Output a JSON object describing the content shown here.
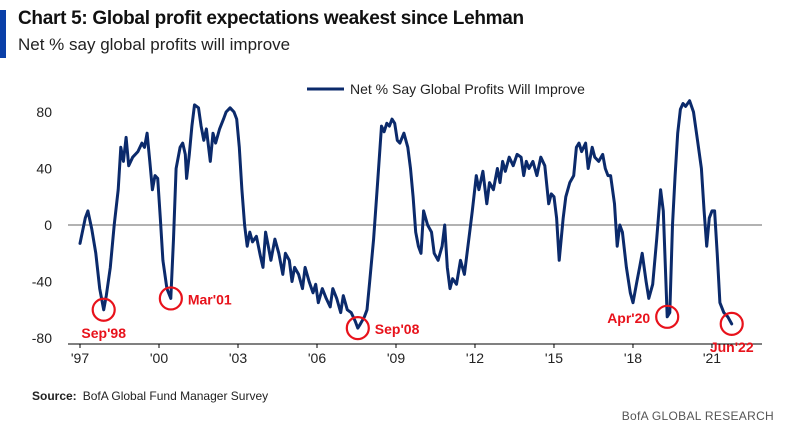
{
  "header": {
    "title": "Chart 5: Global profit expectations weakest since Lehman",
    "subtitle": "Net % say global profits will improve"
  },
  "footer": {
    "source_label": "Source:",
    "source_text": "BofA Global Fund Manager Survey",
    "brand": "BofA GLOBAL RESEARCH"
  },
  "colors": {
    "line": "#0b2a6b",
    "annotation": "#e8121b",
    "accent": "#0a3fa8",
    "axis": "#000000"
  },
  "chart_data": {
    "type": "line",
    "title": "Chart 5: Global profit expectations weakest since Lehman",
    "subtitle": "Net % say global profits will improve",
    "ylim": [
      -80,
      80
    ],
    "yticks": [
      -80,
      -40,
      0,
      40,
      80
    ],
    "xlim": [
      1997.0,
      2022.9
    ],
    "xticks": [
      {
        "x": 1997,
        "label": "'97"
      },
      {
        "x": 2000,
        "label": "'00"
      },
      {
        "x": 2003,
        "label": "'03"
      },
      {
        "x": 2006,
        "label": "'06"
      },
      {
        "x": 2009,
        "label": "'09"
      },
      {
        "x": 2012,
        "label": "'12"
      },
      {
        "x": 2015,
        "label": "'15"
      },
      {
        "x": 2018,
        "label": "'18"
      },
      {
        "x": 2021,
        "label": "'21"
      }
    ],
    "grid": false,
    "legend": "top-center",
    "series": [
      {
        "name": "Net % Say Global Profits Will Improve",
        "points": [
          [
            1997.0,
            -13
          ],
          [
            1997.2,
            5
          ],
          [
            1997.3,
            10
          ],
          [
            1997.45,
            -3
          ],
          [
            1997.6,
            -20
          ],
          [
            1997.75,
            -45
          ],
          [
            1997.9,
            -60
          ],
          [
            1998.0,
            -50
          ],
          [
            1998.15,
            -30
          ],
          [
            1998.3,
            0
          ],
          [
            1998.45,
            25
          ],
          [
            1998.55,
            55
          ],
          [
            1998.65,
            45
          ],
          [
            1998.75,
            62
          ],
          [
            1998.85,
            42
          ],
          [
            1999.0,
            48
          ],
          [
            1999.2,
            52
          ],
          [
            1999.35,
            58
          ],
          [
            1999.45,
            55
          ],
          [
            1999.55,
            65
          ],
          [
            1999.65,
            45
          ],
          [
            1999.75,
            25
          ],
          [
            1999.85,
            35
          ],
          [
            1999.95,
            33
          ],
          [
            2000.05,
            5
          ],
          [
            2000.15,
            -25
          ],
          [
            2000.3,
            -45
          ],
          [
            2000.45,
            -52
          ],
          [
            2000.55,
            -10
          ],
          [
            2000.65,
            40
          ],
          [
            2000.8,
            55
          ],
          [
            2000.9,
            58
          ],
          [
            2001.0,
            50
          ],
          [
            2001.05,
            33
          ],
          [
            2001.15,
            50
          ],
          [
            2001.25,
            70
          ],
          [
            2001.35,
            85
          ],
          [
            2001.5,
            83
          ],
          [
            2001.6,
            70
          ],
          [
            2001.7,
            60
          ],
          [
            2001.8,
            68
          ],
          [
            2001.95,
            45
          ],
          [
            2002.05,
            65
          ],
          [
            2002.15,
            58
          ],
          [
            2002.3,
            68
          ],
          [
            2002.45,
            75
          ],
          [
            2002.55,
            80
          ],
          [
            2002.7,
            83
          ],
          [
            2002.85,
            80
          ],
          [
            2002.95,
            75
          ],
          [
            2003.05,
            55
          ],
          [
            2003.15,
            25
          ],
          [
            2003.25,
            0
          ],
          [
            2003.35,
            -15
          ],
          [
            2003.45,
            -5
          ],
          [
            2003.55,
            -12
          ],
          [
            2003.7,
            -8
          ],
          [
            2003.85,
            -22
          ],
          [
            2003.95,
            -30
          ],
          [
            2004.05,
            -5
          ],
          [
            2004.15,
            -15
          ],
          [
            2004.25,
            -25
          ],
          [
            2004.4,
            -10
          ],
          [
            2004.55,
            -20
          ],
          [
            2004.7,
            -35
          ],
          [
            2004.8,
            -20
          ],
          [
            2004.95,
            -25
          ],
          [
            2005.05,
            -40
          ],
          [
            2005.15,
            -30
          ],
          [
            2005.3,
            -35
          ],
          [
            2005.45,
            -45
          ],
          [
            2005.55,
            -30
          ],
          [
            2005.7,
            -40
          ],
          [
            2005.85,
            -48
          ],
          [
            2005.95,
            -42
          ],
          [
            2006.05,
            -55
          ],
          [
            2006.2,
            -45
          ],
          [
            2006.35,
            -52
          ],
          [
            2006.5,
            -58
          ],
          [
            2006.6,
            -45
          ],
          [
            2006.75,
            -52
          ],
          [
            2006.9,
            -62
          ],
          [
            2007.0,
            -50
          ],
          [
            2007.15,
            -60
          ],
          [
            2007.3,
            -62
          ],
          [
            2007.45,
            -68
          ],
          [
            2007.55,
            -73
          ],
          [
            2007.65,
            -70
          ],
          [
            2007.8,
            -65
          ],
          [
            2007.9,
            -60
          ],
          [
            2008.0,
            -40
          ],
          [
            2008.15,
            -10
          ],
          [
            2008.3,
            30
          ],
          [
            2008.45,
            70
          ],
          [
            2008.55,
            66
          ],
          [
            2008.65,
            72
          ],
          [
            2008.75,
            70
          ],
          [
            2008.85,
            75
          ],
          [
            2008.95,
            72
          ],
          [
            2009.05,
            60
          ],
          [
            2009.15,
            58
          ],
          [
            2009.3,
            65
          ],
          [
            2009.45,
            55
          ],
          [
            2009.55,
            40
          ],
          [
            2009.65,
            20
          ],
          [
            2009.75,
            -5
          ],
          [
            2009.85,
            -15
          ],
          [
            2009.95,
            -20
          ],
          [
            2010.05,
            10
          ],
          [
            2010.2,
            0
          ],
          [
            2010.35,
            -5
          ],
          [
            2010.45,
            -20
          ],
          [
            2010.6,
            -25
          ],
          [
            2010.75,
            -15
          ],
          [
            2010.85,
            0
          ],
          [
            2010.95,
            -30
          ],
          [
            2011.05,
            -45
          ],
          [
            2011.15,
            -38
          ],
          [
            2011.3,
            -42
          ],
          [
            2011.45,
            -25
          ],
          [
            2011.6,
            -35
          ],
          [
            2011.8,
            -5
          ],
          [
            2011.9,
            10
          ],
          [
            2012.05,
            35
          ],
          [
            2012.15,
            25
          ],
          [
            2012.3,
            38
          ],
          [
            2012.45,
            15
          ],
          [
            2012.55,
            30
          ],
          [
            2012.7,
            25
          ],
          [
            2012.85,
            40
          ],
          [
            2012.95,
            30
          ],
          [
            2013.05,
            45
          ],
          [
            2013.15,
            38
          ],
          [
            2013.3,
            48
          ],
          [
            2013.45,
            42
          ],
          [
            2013.6,
            50
          ],
          [
            2013.75,
            48
          ],
          [
            2013.85,
            35
          ],
          [
            2013.95,
            45
          ],
          [
            2014.05,
            40
          ],
          [
            2014.2,
            45
          ],
          [
            2014.35,
            35
          ],
          [
            2014.5,
            48
          ],
          [
            2014.65,
            42
          ],
          [
            2014.8,
            15
          ],
          [
            2014.9,
            22
          ],
          [
            2015.0,
            20
          ],
          [
            2015.1,
            5
          ],
          [
            2015.2,
            -25
          ],
          [
            2015.35,
            5
          ],
          [
            2015.45,
            20
          ],
          [
            2015.6,
            30
          ],
          [
            2015.75,
            35
          ],
          [
            2015.85,
            55
          ],
          [
            2015.95,
            58
          ],
          [
            2016.05,
            52
          ],
          [
            2016.2,
            58
          ],
          [
            2016.3,
            40
          ],
          [
            2016.45,
            55
          ],
          [
            2016.55,
            48
          ],
          [
            2016.7,
            45
          ],
          [
            2016.85,
            50
          ],
          [
            2016.95,
            40
          ],
          [
            2017.05,
            35
          ],
          [
            2017.15,
            35
          ],
          [
            2017.3,
            15
          ],
          [
            2017.4,
            -15
          ],
          [
            2017.5,
            0
          ],
          [
            2017.6,
            -5
          ],
          [
            2017.75,
            -30
          ],
          [
            2017.9,
            -48
          ],
          [
            2018.0,
            -55
          ],
          [
            2018.15,
            -40
          ],
          [
            2018.25,
            -30
          ],
          [
            2018.35,
            -20
          ],
          [
            2018.5,
            -40
          ],
          [
            2018.6,
            -52
          ],
          [
            2018.75,
            -42
          ],
          [
            2018.9,
            -10
          ],
          [
            2019.05,
            25
          ],
          [
            2019.15,
            10
          ],
          [
            2019.3,
            -65
          ],
          [
            2019.4,
            -62
          ],
          [
            2019.5,
            0
          ],
          [
            2019.6,
            35
          ],
          [
            2019.7,
            65
          ],
          [
            2019.8,
            82
          ],
          [
            2019.9,
            86
          ],
          [
            2020.0,
            84
          ],
          [
            2020.15,
            88
          ],
          [
            2020.3,
            80
          ],
          [
            2020.45,
            60
          ],
          [
            2020.6,
            40
          ],
          [
            2020.7,
            10
          ],
          [
            2020.8,
            -15
          ],
          [
            2020.9,
            5
          ],
          [
            2021.0,
            10
          ],
          [
            2021.1,
            10
          ],
          [
            2021.2,
            -20
          ],
          [
            2021.3,
            -55
          ],
          [
            2021.45,
            -62
          ],
          [
            2021.6,
            -65
          ],
          [
            2021.75,
            -70
          ]
        ]
      }
    ],
    "annotations": [
      {
        "label": "Sep'98",
        "x": 1997.9,
        "y": -60,
        "label_side": "below"
      },
      {
        "label": "Mar'01",
        "x": 2000.45,
        "y": -52,
        "label_side": "right"
      },
      {
        "label": "Sep'08",
        "x": 2007.55,
        "y": -73,
        "label_side": "right"
      },
      {
        "label": "Apr'20",
        "x": 2019.3,
        "y": -65,
        "label_side": "left"
      },
      {
        "label": "Jun'22",
        "x": 2021.75,
        "y": -70,
        "label_side": "below"
      }
    ]
  }
}
